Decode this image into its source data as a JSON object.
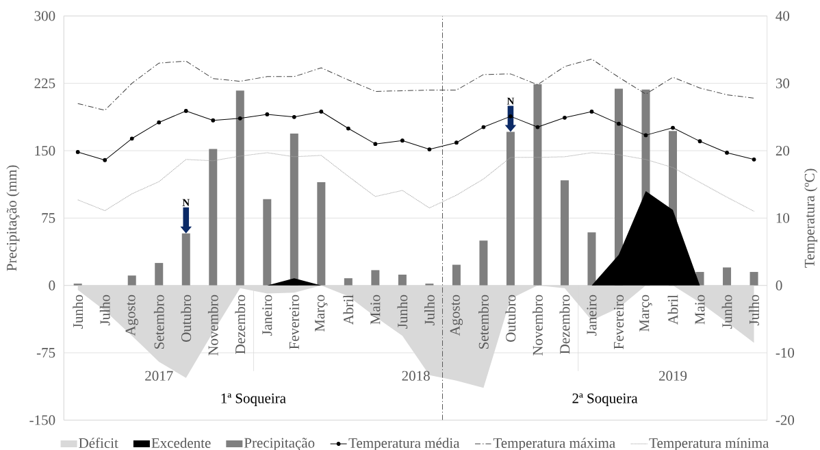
{
  "chart_data": {
    "type": "bar",
    "x": [
      "2017-06",
      "2017-07",
      "2017-08",
      "2017-09",
      "2017-10",
      "2017-11",
      "2017-12",
      "2018-01",
      "2018-02",
      "2018-03",
      "2018-04",
      "2018-05",
      "2018-06",
      "2018-07",
      "2018-08",
      "2018-09",
      "2018-10",
      "2018-11",
      "2018-12",
      "2019-01",
      "2019-02",
      "2019-03",
      "2019-04",
      "2019-05",
      "2019-06",
      "2019-07"
    ],
    "xlim": [
      "2017-05-16",
      "2019-07-16"
    ],
    "xticks": [
      {
        "value": "2017-06",
        "label": "Junho"
      },
      {
        "value": "2017-07",
        "label": "Julho"
      },
      {
        "value": "2017-08",
        "label": "Agosto"
      },
      {
        "value": "2017-09",
        "label": "Setembro"
      },
      {
        "value": "2017-10",
        "label": "Outubro"
      },
      {
        "value": "2017-11",
        "label": "Novembro"
      },
      {
        "value": "2017-12",
        "label": "Dezembro"
      },
      {
        "value": "2018-01",
        "label": "Janeiro"
      },
      {
        "value": "2018-02",
        "label": "Fevereiro"
      },
      {
        "value": "2018-03",
        "label": "Março"
      },
      {
        "value": "2018-04",
        "label": "Abril"
      },
      {
        "value": "2018-05",
        "label": "Maio"
      },
      {
        "value": "2018-06",
        "label": "Junho"
      },
      {
        "value": "2018-07",
        "label": "Julho"
      },
      {
        "value": "2018-08",
        "label": "Agosto"
      },
      {
        "value": "2018-09",
        "label": "Setembro"
      },
      {
        "value": "2018-10",
        "label": "Outubro"
      },
      {
        "value": "2018-11",
        "label": "Novembro"
      },
      {
        "value": "2018-12",
        "label": "Dezembro"
      },
      {
        "value": "2019-01",
        "label": "Janeiro"
      },
      {
        "value": "2019-02",
        "label": "Fevereiro"
      },
      {
        "value": "2019-03",
        "label": "Março"
      },
      {
        "value": "2019-04",
        "label": "Abril"
      },
      {
        "value": "2019-05",
        "label": "Maio"
      },
      {
        "value": "2019-06",
        "label": "Junho"
      },
      {
        "value": "2019-07",
        "label": "Julho"
      }
    ],
    "ylabel": "Precipitação (mm)",
    "y2label": "Temperatura (ºC)",
    "ylim": [
      -150,
      300
    ],
    "yticks": [
      -150,
      -75,
      0,
      75,
      150,
      225,
      300
    ],
    "y2lim": [
      -20,
      40
    ],
    "y2ticks": [
      -20,
      -10,
      0,
      10,
      20,
      30,
      40
    ],
    "series": [
      {
        "name": "Déficit",
        "type": "area",
        "color": "#d9d9d9",
        "values": [
          -5,
          -28,
          -56,
          -85,
          -103,
          -52,
          -3,
          -9,
          -8,
          0,
          -12,
          -35,
          -56,
          -100,
          -106,
          -114,
          -15,
          0,
          -3,
          -39,
          -25,
          0,
          0,
          -19,
          -41,
          -64
        ]
      },
      {
        "name": "Excedente",
        "type": "area",
        "color": "#000000",
        "values": [
          0,
          0,
          0,
          0,
          0,
          0,
          0,
          0,
          8,
          0,
          0,
          0,
          0,
          0,
          0,
          0,
          0,
          0,
          0,
          0,
          34,
          105,
          84,
          0,
          0,
          0
        ]
      },
      {
        "name": "Precipitação",
        "color": "#7f7f7f",
        "values": [
          2,
          0,
          11,
          25,
          58,
          152,
          217,
          96,
          169,
          115,
          8,
          17,
          12,
          2,
          23,
          50,
          171,
          224,
          117,
          59,
          219,
          218,
          172,
          15,
          20,
          15
        ]
      },
      {
        "name": "Temperatura média",
        "type": "line",
        "axis": "y2",
        "color": "#000000",
        "marker": "circle",
        "line_style": "solid",
        "values": [
          19.8,
          18.6,
          21.8,
          24.2,
          25.9,
          24.5,
          24.8,
          25.4,
          25.0,
          25.8,
          23.3,
          21.0,
          21.5,
          20.2,
          21.2,
          23.5,
          25.1,
          23.5,
          24.9,
          25.8,
          24.0,
          22.3,
          23.4,
          21.4,
          19.7,
          18.7
        ]
      },
      {
        "name": "Temperatura máxima",
        "type": "line",
        "axis": "y2",
        "color": "#404040",
        "marker": "none",
        "line_style": "dashdot",
        "values": [
          27.0,
          26.0,
          30.0,
          33.0,
          33.3,
          30.7,
          30.3,
          31.0,
          31.0,
          32.3,
          30.5,
          28.8,
          28.9,
          29.0,
          29.0,
          31.3,
          31.4,
          29.8,
          32.5,
          33.6,
          30.9,
          28.4,
          30.9,
          29.3,
          28.3,
          27.8
        ]
      },
      {
        "name": "Temperatura mínima",
        "type": "line",
        "axis": "y2",
        "color": "#a6a6a6",
        "marker": "none",
        "line_style": "dotted",
        "values": [
          12.7,
          11.1,
          13.6,
          15.4,
          18.7,
          18.5,
          19.2,
          19.7,
          19.1,
          19.3,
          16.2,
          13.2,
          14.1,
          11.5,
          13.4,
          15.8,
          19.0,
          19.0,
          19.1,
          19.7,
          19.4,
          18.7,
          17.5,
          15.3,
          13.1,
          11.0
        ]
      }
    ],
    "ref_lines": [
      {
        "axis": "x",
        "value": "2018-07-16",
        "color": "#595959",
        "line_style": "dashdot"
      }
    ],
    "annotations": [
      "2017",
      "2018",
      "2019",
      "1ª Soqueira",
      "2ª Soqueira",
      {
        "text": "N",
        "x": "2017-10",
        "y": 58
      },
      {
        "text": "N",
        "x": "2018-10",
        "y": 171
      }
    ],
    "grid": "y",
    "legend": "bottom"
  }
}
